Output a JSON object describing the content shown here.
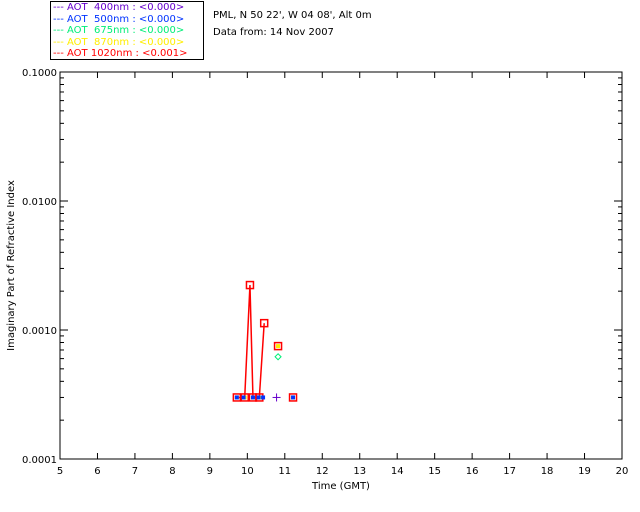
{
  "legend": [
    {
      "label": "--- AOT  400nm : <0.000>",
      "color": "#6600cc"
    },
    {
      "label": "--- AOT  500nm : <0.000>",
      "color": "#0033ff"
    },
    {
      "label": "--- AOT  675nm : <0.000>",
      "color": "#00ee77"
    },
    {
      "label": "--- AOT  870nm : <0.000>",
      "color": "#ffee00"
    },
    {
      "label": "--- AOT 1020nm : <0.001>",
      "color": "#ff0000"
    }
  ],
  "info": {
    "location": "PML, N 50 22', W 04 08', Alt 0m",
    "date": "Data from: 14 Nov 2007"
  },
  "chart_data": {
    "type": "scatter",
    "xlabel": "Time (GMT)",
    "ylabel": "Imaginary Part of Refractive Index",
    "xlim": [
      5,
      20
    ],
    "ylim": [
      0.0001,
      0.1
    ],
    "yscale": "log",
    "xticks": [
      "5",
      "6",
      "7",
      "8",
      "9",
      "10",
      "11",
      "12",
      "13",
      "14",
      "15",
      "16",
      "17",
      "18",
      "19",
      "20"
    ],
    "yticks": [
      {
        "v": 0.1,
        "label": "0.1000"
      },
      {
        "v": 0.01,
        "label": "0.0100"
      },
      {
        "v": 0.001,
        "label": "0.0010"
      },
      {
        "v": 0.0001,
        "label": "0.0001"
      }
    ],
    "series": [
      {
        "name": "AOT 1020nm",
        "color": "#ff0000",
        "marker": "square",
        "x": [
          9.72,
          9.93,
          10.07,
          10.15,
          10.32,
          10.45,
          10.82,
          11.22
        ],
        "y": [
          0.0003,
          0.0003,
          0.00223,
          0.0003,
          0.0003,
          0.00113,
          0.00075,
          0.0003
        ],
        "connected_points": 6
      },
      {
        "name": "AOT 870nm",
        "color": "#ffee00",
        "marker": "dot",
        "x": [
          9.72,
          9.93,
          10.15,
          10.32,
          10.82,
          11.22
        ],
        "y": [
          0.0003,
          0.0003,
          0.0003,
          0.0003,
          0.00075,
          0.0003
        ]
      },
      {
        "name": "AOT 500nm",
        "color": "#0033ff",
        "marker": "dot",
        "x": [
          9.72,
          9.9,
          10.15,
          10.3,
          10.42,
          11.22
        ],
        "y": [
          0.0003,
          0.0003,
          0.0003,
          0.0003,
          0.0003,
          0.0003
        ]
      },
      {
        "name": "AOT 675nm",
        "color": "#00ee77",
        "marker": "diamond",
        "x": [
          10.82
        ],
        "y": [
          0.00062
        ]
      },
      {
        "name": "AOT 400nm",
        "color": "#6600cc",
        "marker": "plus",
        "x": [
          10.78
        ],
        "y": [
          0.0003
        ]
      }
    ]
  }
}
